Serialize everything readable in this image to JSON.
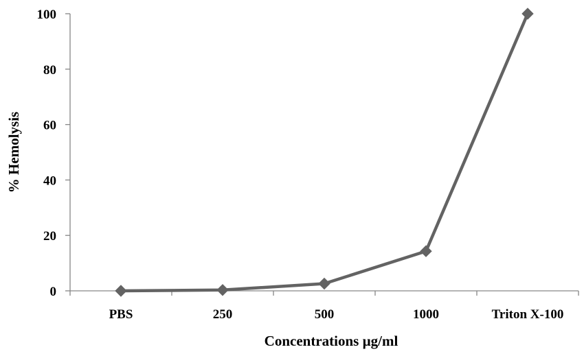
{
  "chart_data": {
    "type": "line",
    "title": "",
    "xlabel": "Concentrations µg/ml",
    "ylabel": "% Hemolysis",
    "categories": [
      "PBS",
      "250",
      "500",
      "1000",
      "Triton X-100"
    ],
    "series": [
      {
        "values": [
          0,
          0.3,
          2.6,
          14.3,
          100
        ]
      }
    ],
    "ylim": [
      0,
      100
    ],
    "yticks": [
      "0",
      "20",
      "40",
      "60",
      "80",
      "100"
    ],
    "grid": false,
    "legend": "none",
    "colors": {
      "series": "#636363",
      "axis": "#868686",
      "text": "#000000"
    },
    "marker": "diamond"
  }
}
